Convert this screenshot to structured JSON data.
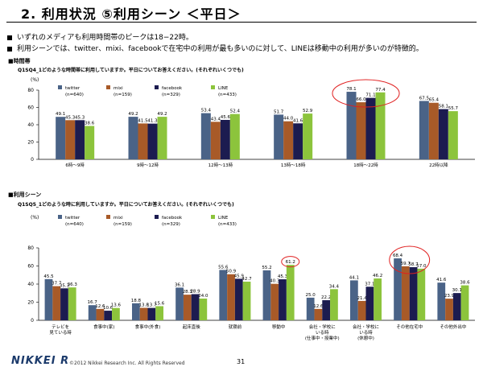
{
  "page": {
    "title": "2. 利用状況 ⑤利用シーン ＜平日＞",
    "bullets": [
      "いずれのメディアも利用時間帯のピークは18−22時。",
      "利用シーンでは、twitter、mixi、facebookで在宅中の利用が最も多いのに対して、LINEは移動中の利用が多いのが特徴的。"
    ],
    "footer_logo": "NIKKEI R",
    "footer_copy": "©2012 Nikkei Research Inc. All Rights Reserved",
    "page_number": "31"
  },
  "colors": {
    "twitter": "#4a6387",
    "mixi": "#a85a28",
    "facebook": "#1c1c50",
    "line": "#8cc43c",
    "highlight": "#e02020"
  },
  "chart_data": [
    {
      "type": "bar",
      "section_label": "■時間帯",
      "question": "Q1SQ4_1どのような時間帯に利用していますか。平日についてお答えください。(それぞれいくつでも)",
      "ylabel": "(%)",
      "ylim": [
        0,
        80
      ],
      "yticks": [
        0,
        20,
        40,
        60,
        80
      ],
      "categories": [
        "6時〜9時",
        "9時〜12時",
        "12時〜13時",
        "13時〜18時",
        "18時〜22時",
        "22時以降"
      ],
      "series": [
        {
          "name": "twitter",
          "n": "(n=640)",
          "values": [
            49.1,
            49.2,
            53.4,
            51.7,
            78.1,
            67.5
          ]
        },
        {
          "name": "mixi",
          "n": "(n=159)",
          "values": [
            45.3,
            41.5,
            43.4,
            44.0,
            66.0,
            65.4
          ]
        },
        {
          "name": "facebook",
          "n": "(n=329)",
          "values": [
            45.3,
            41.3,
            45.6,
            41.6,
            71.1,
            58.1
          ]
        },
        {
          "name": "LINE",
          "n": "(n=433)",
          "values": [
            38.6,
            49.2,
            52.4,
            52.9,
            77.4,
            55.7
          ]
        }
      ],
      "highlight_category": 4
    },
    {
      "type": "bar",
      "section_label": "■利用シーン",
      "question": "Q1SQ5_1どのような時に利用していますか。平日についてお答えください。(それぞれいくつでも)",
      "ylabel": "(%)",
      "ylim": [
        0,
        80
      ],
      "yticks": [
        0,
        20,
        40,
        60,
        80
      ],
      "categories": [
        [
          "テレビを",
          "見ている時"
        ],
        [
          "食事中(家)"
        ],
        [
          "食事中(外食)"
        ],
        [
          "起床直後"
        ],
        [
          "就寝前"
        ],
        [
          "移動中"
        ],
        [
          "会社・学校に",
          "いる時",
          "(仕事中・授業中)"
        ],
        [
          "会社・学校に",
          "いる時",
          "(休憩中)"
        ],
        [
          "その他在宅中"
        ],
        [
          "その他外出中"
        ]
      ],
      "series": [
        {
          "name": "twitter",
          "n": "(n=640)",
          "values": [
            45.5,
            16.7,
            18.8,
            36.1,
            55.6,
            55.2,
            25.0,
            44.1,
            68.4,
            41.6
          ]
        },
        {
          "name": "mixi",
          "n": "(n=159)",
          "values": [
            37.7,
            12.6,
            13.8,
            28.3,
            50.9,
            40.3,
            12.6,
            21.4,
            59.7,
            23.9
          ]
        },
        {
          "name": "facebook",
          "n": "(n=329)",
          "values": [
            35.3,
            10.6,
            13.7,
            28.9,
            45.9,
            45.3,
            22.2,
            37.1,
            58.7,
            30.1
          ]
        },
        {
          "name": "LINE",
          "n": "(n=433)",
          "values": [
            36.3,
            13.6,
            15.6,
            24.0,
            42.7,
            61.2,
            34.4,
            46.2,
            57.0,
            38.6
          ]
        }
      ],
      "highlight_category": 8,
      "highlight_series_point": {
        "category": 5,
        "series": 3
      }
    }
  ]
}
